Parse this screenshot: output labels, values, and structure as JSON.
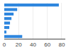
{
  "chart_data": {
    "type": "bar",
    "orientation": "horizontal",
    "categories": [
      null,
      null,
      null,
      null,
      null,
      null,
      null,
      null
    ],
    "values": [
      76,
      18,
      13,
      10,
      8,
      7,
      3,
      25
    ],
    "color": "#2e86de",
    "xlim": [
      0,
      85
    ],
    "xticks": [
      0,
      20,
      40,
      60,
      80
    ],
    "grid": true,
    "tick_labels": "x"
  }
}
